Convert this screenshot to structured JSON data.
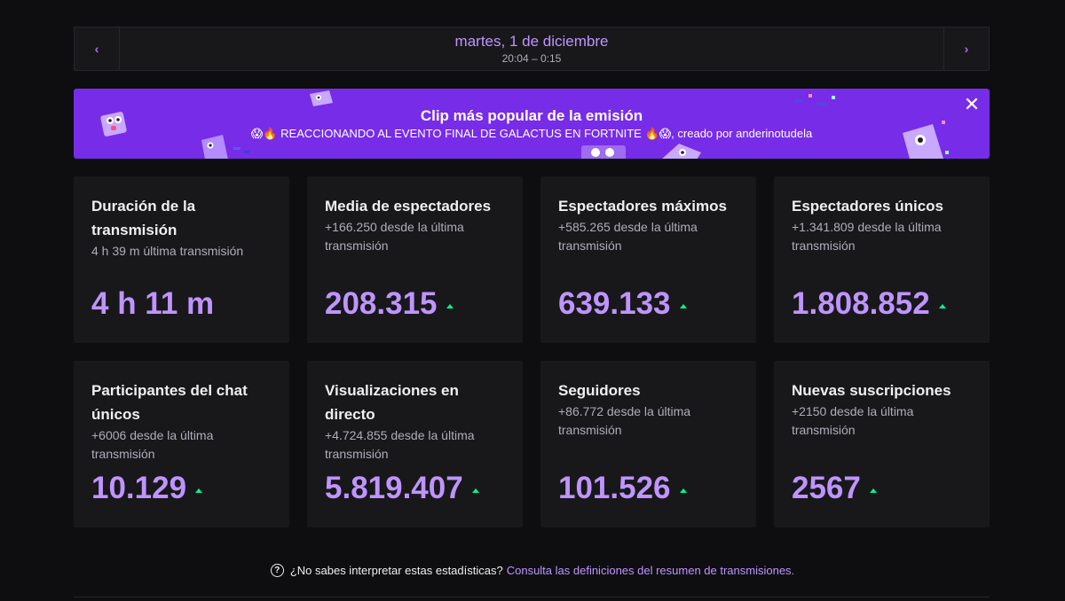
{
  "header": {
    "date": "martes, 1 de diciembre",
    "time_range": "20:04 – 0:15",
    "prev_icon": "chevron-left-icon",
    "next_icon": "chevron-right-icon"
  },
  "banner": {
    "title": "Clip más popular de la emisión",
    "subtitle": "😱🔥 REACCIONANDO AL EVENTO FINAL DE GALACTUS EN FORTNITE 🔥😱, creado por anderinotudela",
    "close_icon": "close-icon",
    "color": "#772ce8"
  },
  "stats": [
    {
      "title": "Duración de la transmisión",
      "sub": "4 h 39 m última transmisión",
      "value": "4 h 11 m",
      "trend": false
    },
    {
      "title": "Media de espectadores",
      "sub": "+166.250 desde la última transmisión",
      "value": "208.315",
      "trend": true
    },
    {
      "title": "Espectadores máximos",
      "sub": "+585.265 desde la última transmisión",
      "value": "639.133",
      "trend": true
    },
    {
      "title": "Espectadores únicos",
      "sub": "+1.341.809 desde la última transmisión",
      "value": "1.808.852",
      "trend": true
    },
    {
      "title": "Participantes del chat únicos",
      "sub": "+6006 desde la última transmisión",
      "value": "10.129",
      "trend": true
    },
    {
      "title": "Visualizaciones en directo",
      "sub": "+4.724.855 desde la última transmisión",
      "value": "5.819.407",
      "trend": true
    },
    {
      "title": "Seguidores",
      "sub": "+86.772 desde la última transmisión",
      "value": "101.526",
      "trend": true
    },
    {
      "title": "Nuevas suscripciones",
      "sub": "+2150 desde la última transmisión",
      "value": "2567",
      "trend": true
    }
  ],
  "footer": {
    "question": "¿No sabes interpretar estas estadísticas?",
    "link": "Consulta las definiciones del resumen de transmisiones.",
    "help_icon": "question-circle-icon"
  },
  "colors": {
    "accent": "#bf94ff",
    "trend_up": "#00f593",
    "card_bg": "#18181b",
    "page_bg": "#0e0e10"
  }
}
